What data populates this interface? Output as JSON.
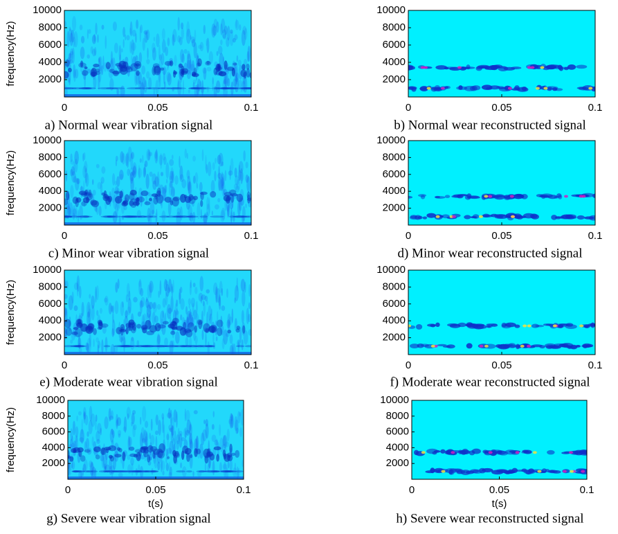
{
  "chart_data": [
    {
      "type": "spectrogram",
      "caption": "a) Normal wear vibration signal",
      "ylabel": "frequency(Hz)",
      "xlim": [
        0,
        0.1
      ],
      "ylim": [
        0,
        10000
      ],
      "xticks": [
        0,
        0.05,
        0.1
      ],
      "yticks": [
        2000,
        4000,
        6000,
        8000,
        10000
      ]
    },
    {
      "type": "spectrogram",
      "caption": "b) Normal wear reconstructed signal",
      "xlim": [
        0,
        0.1
      ],
      "ylim": [
        0,
        10000
      ],
      "xticks": [
        0,
        0.05,
        0.1
      ],
      "yticks": [
        2000,
        4000,
        6000,
        8000,
        10000
      ]
    },
    {
      "type": "spectrogram",
      "caption": "c) Minor wear vibration signal",
      "ylabel": "frequency(Hz)",
      "xlim": [
        0,
        0.1
      ],
      "ylim": [
        0,
        10000
      ],
      "xticks": [
        0,
        0.05,
        0.1
      ],
      "yticks": [
        2000,
        4000,
        6000,
        8000,
        10000
      ]
    },
    {
      "type": "spectrogram",
      "caption": "d) Minor wear reconstructed signal",
      "xlim": [
        0,
        0.1
      ],
      "ylim": [
        0,
        10000
      ],
      "xticks": [
        0,
        0.05,
        0.1
      ],
      "yticks": [
        2000,
        4000,
        6000,
        8000,
        10000
      ]
    },
    {
      "type": "spectrogram",
      "caption": "e) Moderate wear vibration signal",
      "ylabel": "frequency(Hz)",
      "xlim": [
        0,
        0.1
      ],
      "ylim": [
        0,
        10000
      ],
      "xticks": [
        0,
        0.05,
        0.1
      ],
      "yticks": [
        2000,
        4000,
        6000,
        8000,
        10000
      ]
    },
    {
      "type": "spectrogram",
      "caption": "f) Moderate wear reconstructed signal",
      "xlim": [
        0,
        0.1
      ],
      "ylim": [
        0,
        10000
      ],
      "xticks": [
        0,
        0.05,
        0.1
      ],
      "yticks": [
        2000,
        4000,
        6000,
        8000,
        10000
      ]
    },
    {
      "type": "spectrogram",
      "caption": "g) Severe wear vibration signal",
      "ylabel": "frequency(Hz)",
      "xlabel": "t(s)",
      "xlim": [
        0,
        0.1
      ],
      "ylim": [
        0,
        10000
      ],
      "xticks": [
        0,
        0.05,
        0.1
      ],
      "yticks": [
        2000,
        4000,
        6000,
        8000,
        10000
      ]
    },
    {
      "type": "spectrogram",
      "caption": "h) Severe wear reconstructed signal",
      "xlabel": "t(s)",
      "xlim": [
        0,
        0.1
      ],
      "ylim": [
        0,
        10000
      ],
      "xticks": [
        0,
        0.05,
        0.1
      ],
      "yticks": [
        2000,
        4000,
        6000,
        8000,
        10000
      ]
    }
  ]
}
